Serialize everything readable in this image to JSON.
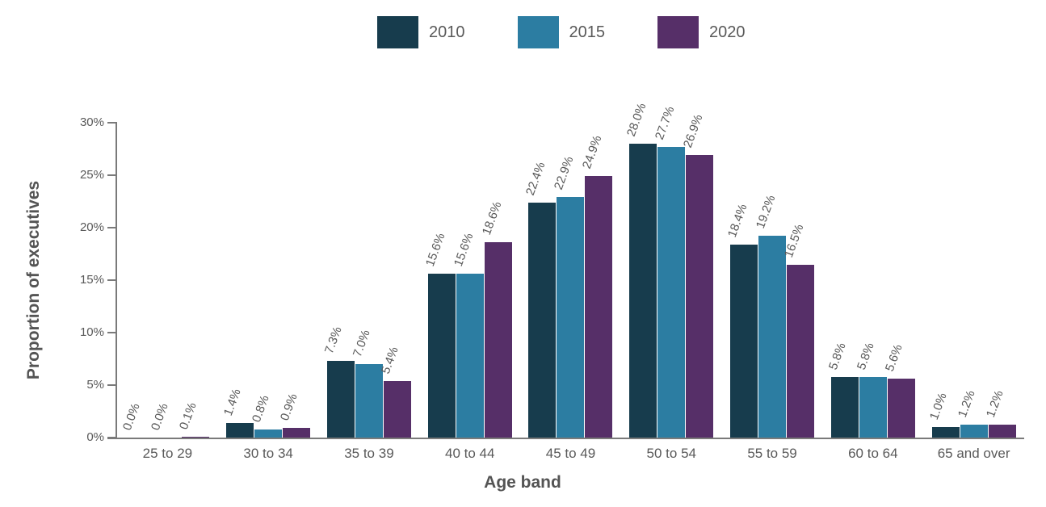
{
  "chart_data": {
    "type": "bar",
    "title": "",
    "xlabel": "Age band",
    "ylabel": "Proportion of executives",
    "ylim": [
      0,
      30
    ],
    "yticks": [
      "0%",
      "5%",
      "10%",
      "15%",
      "20%",
      "25%",
      "30%"
    ],
    "grid": false,
    "legend_position": "top",
    "categories": [
      "25 to 29",
      "30 to 34",
      "35 to 39",
      "40 to 44",
      "45 to 49",
      "50 to 54",
      "55 to 59",
      "60 to 64",
      "65 and over"
    ],
    "series": [
      {
        "name": "2010",
        "color": "#173C4D",
        "values": [
          0.0,
          1.4,
          7.3,
          15.6,
          22.4,
          28.0,
          18.4,
          5.8,
          1.0
        ],
        "labels": [
          "0.0%",
          "1.4%",
          "7.3%",
          "15.6%",
          "22.4%",
          "28.0%",
          "18.4%",
          "5.8%",
          "1.0%"
        ]
      },
      {
        "name": "2015",
        "color": "#2C7DA2",
        "values": [
          0.0,
          0.8,
          7.0,
          15.6,
          22.9,
          27.7,
          19.2,
          5.8,
          1.2
        ],
        "labels": [
          "0.0%",
          "0.8%",
          "7.0%",
          "15.6%",
          "22.9%",
          "27.7%",
          "19.2%",
          "5.8%",
          "1.2%"
        ]
      },
      {
        "name": "2020",
        "color": "#562F68",
        "values": [
          0.1,
          0.9,
          5.4,
          18.6,
          24.9,
          26.9,
          16.5,
          5.6,
          1.2
        ],
        "labels": [
          "0.1%",
          "0.9%",
          "5.4%",
          "18.6%",
          "24.9%",
          "26.9%",
          "16.5%",
          "5.6%",
          "1.2%"
        ]
      }
    ]
  },
  "colors": {
    "label_text": "#595959",
    "axis_line": "#7a7a7a",
    "axis_title_text": "#545454"
  }
}
